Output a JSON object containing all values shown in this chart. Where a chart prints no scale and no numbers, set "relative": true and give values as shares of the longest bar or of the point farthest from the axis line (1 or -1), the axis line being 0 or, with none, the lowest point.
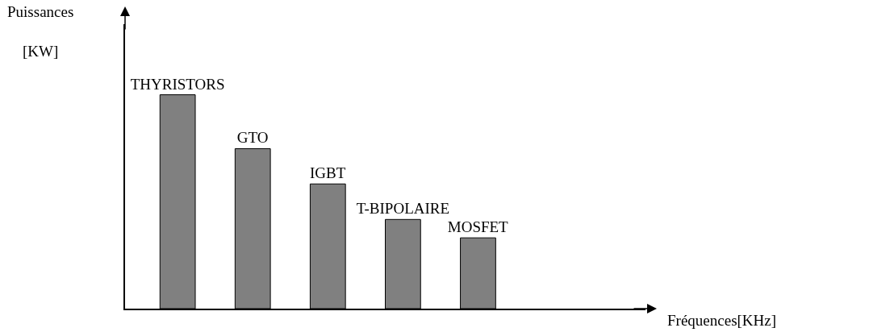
{
  "chart_data": {
    "type": "bar",
    "relative": true,
    "annotations": [
      "Fréquences[KHz]"
    ],
    "ylabel": "Puissances\n[KW]",
    "categories": [
      "THYRISTORS",
      "GTO",
      "IGBT",
      "T-BIPOLAIRE",
      "MOSFET"
    ],
    "values": [
      1,
      0.748,
      0.583,
      0.417,
      0.331
    ],
    "color": "#808080"
  }
}
